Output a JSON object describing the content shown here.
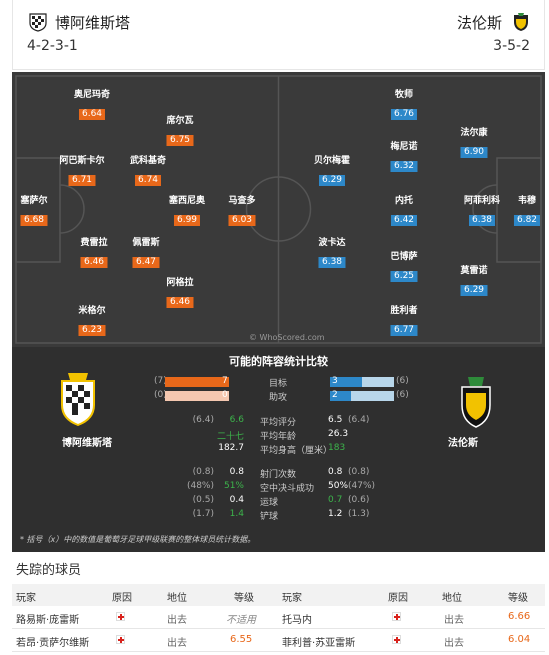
{
  "header": {
    "home_team": "博阿维斯塔",
    "away_team": "法伦斯",
    "home_formation": "4-2-3-1",
    "away_formation": "3-5-2"
  },
  "pitch": {
    "watermark": "© WhoScored.com",
    "home_players": [
      {
        "name": "奥尼玛奇",
        "rating": "6.64"
      },
      {
        "name": "席尔瓦",
        "rating": "6.75"
      },
      {
        "name": "阿巴斯卡尔",
        "rating": "6.71"
      },
      {
        "name": "武科基奇",
        "rating": "6.74"
      },
      {
        "name": "塞萨尔",
        "rating": "6.68"
      },
      {
        "name": "塞西尼奥",
        "rating": "6.99"
      },
      {
        "name": "马查多",
        "rating": "6.03"
      },
      {
        "name": "费雷拉",
        "rating": "6.46"
      },
      {
        "name": "佩雷斯",
        "rating": "6.47"
      },
      {
        "name": "阿格拉",
        "rating": "6.46"
      },
      {
        "name": "米格尔",
        "rating": "6.23"
      }
    ],
    "away_players": [
      {
        "name": "牧师",
        "rating": "6.76"
      },
      {
        "name": "法尔康",
        "rating": "6.90"
      },
      {
        "name": "梅尼诺",
        "rating": "6.32"
      },
      {
        "name": "贝尔梅霍",
        "rating": "6.29"
      },
      {
        "name": "内托",
        "rating": "6.42"
      },
      {
        "name": "阿菲利科",
        "rating": "6.38"
      },
      {
        "name": "韦穆",
        "rating": "6.82"
      },
      {
        "name": "波卡达",
        "rating": "6.38"
      },
      {
        "name": "巴博萨",
        "rating": "6.25"
      },
      {
        "name": "莫雷诺",
        "rating": "6.29"
      },
      {
        "name": "胜利者",
        "rating": "6.77"
      }
    ]
  },
  "stats": {
    "title": "可能的阵容统计比较",
    "home_name": "博阿维斯塔",
    "away_name": "法伦斯",
    "bars": [
      {
        "label": "目标",
        "home_avg": "(7)",
        "home": "7",
        "away": "3",
        "away_avg": "(6)",
        "home_frac": 1.0,
        "away_frac": 0.5
      },
      {
        "label": "助攻",
        "home_avg": "(0)",
        "home": "0",
        "away": "2",
        "away_avg": "(6)",
        "home_frac": 0.0,
        "away_frac": 0.33
      }
    ],
    "group1": [
      {
        "label": "平均评分",
        "home_avg": "(6.4)",
        "home": "6.6",
        "away": "6.5",
        "away_avg": "(6.4)"
      },
      {
        "label": "平均年龄",
        "home_avg": "",
        "home": "二十七",
        "away": "26.3",
        "away_avg": ""
      },
      {
        "label": "平均身高（厘米）",
        "home_avg": "",
        "home": "182.7",
        "away": "183",
        "away_avg": ""
      }
    ],
    "group2": [
      {
        "label": "射门次数",
        "home_avg": "(0.8)",
        "home": "0.8",
        "away": "0.8",
        "away_avg": "(0.8)"
      },
      {
        "label": "空中决斗成功",
        "home_avg": "(48%)",
        "home": "51%",
        "away": "50%",
        "away_avg": "(47%)"
      },
      {
        "label": "运球",
        "home_avg": "(0.5)",
        "home": "0.4",
        "away": "0.7",
        "away_avg": "(0.6)"
      },
      {
        "label": "铲球",
        "home_avg": "(1.7)",
        "home": "1.4",
        "away": "1.2",
        "away_avg": "(1.3)"
      }
    ],
    "note": "* 括号（x）中的数值是葡萄牙足球甲级联赛的整体球员统计数据。"
  },
  "missing": {
    "title": "失踪的球员",
    "headers": [
      "玩家",
      "原因",
      "地位",
      "等级",
      "玩家",
      "原因",
      "地位",
      "等级"
    ],
    "rows": [
      {
        "home_player": "路易斯·庞雷斯",
        "home_status": "出去",
        "home_rating": "不适用",
        "away_player": "托马内",
        "away_status": "出去",
        "away_rating": "6.66"
      },
      {
        "home_player": "若昂·贡萨尔维斯",
        "home_status": "出去",
        "home_rating": "6.55",
        "away_player": "菲利普·苏亚雷斯",
        "away_status": "出去",
        "away_rating": "6.04"
      }
    ]
  },
  "colors": {
    "home": "#e8681a",
    "away": "#2d88c9",
    "highlight_green": "#3cb44b",
    "injury": "#d9221c"
  }
}
